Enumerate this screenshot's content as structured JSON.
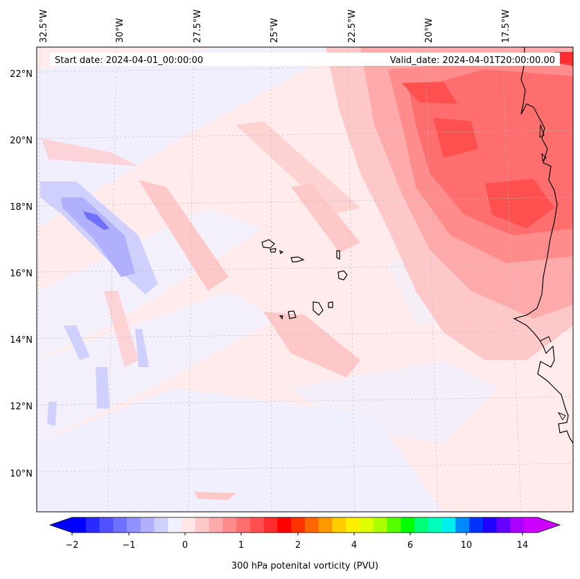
{
  "map": {
    "info_box": {
      "start_date": "Start date: 2024-04-01_00:00:00",
      "valid_date": "Valid_date: 2024-04-01T20:00:00.00"
    },
    "longitude_labels": [
      "32.5°W",
      "30°W",
      "27.5°W",
      "25°W",
      "22.5°W",
      "20°W",
      "17.5°W"
    ],
    "latitude_labels": [
      "22°N",
      "20°N",
      "18°N",
      "16°N",
      "14°N",
      "12°N",
      "10°N"
    ],
    "colors": {
      "background": "#ffebeb",
      "coastline": "#000000",
      "gridline": "#bbbbbb"
    }
  },
  "colorbar": {
    "label": "300 hPa potenital vorticity (PVU)",
    "tick_labels": [
      "−2",
      "−1",
      "0",
      "1",
      "2",
      "4",
      "6",
      "10",
      "14"
    ],
    "colors": [
      "#0000ff",
      "#2a2aff",
      "#5050ff",
      "#7070ff",
      "#9090ff",
      "#b0b0ff",
      "#d0d0ff",
      "#f0f0ff",
      "#ffe6e6",
      "#ffc8c8",
      "#ffaaaa",
      "#ff8c8c",
      "#ff6e6e",
      "#ff5050",
      "#ff2d2d",
      "#ff0000",
      "#ff3300",
      "#ff6600",
      "#ff9900",
      "#ffcc00",
      "#ffee00",
      "#ddff00",
      "#aaff00",
      "#55ff00",
      "#00ff00",
      "#00ff77",
      "#00ffbb",
      "#00eeee",
      "#0088ff",
      "#0033ff",
      "#2200ff",
      "#6600ff",
      "#aa00ff",
      "#cc00ff"
    ],
    "over_color": "#cc00ff",
    "under_color": "#0000ff"
  },
  "chart_data": {
    "type": "contourf_map",
    "variable": "300 hPa potenital vorticity (PVU)",
    "lon_range": [
      -33,
      -15.4
    ],
    "lat_range": [
      8.9,
      22.8
    ],
    "levels": [
      -2,
      -1,
      0,
      1,
      2,
      4,
      6,
      10,
      14
    ],
    "features": [
      {
        "name": "high PV region",
        "approx_lon": -18.5,
        "approx_lat": 19.5,
        "pvu": 2
      },
      {
        "name": "negative PV band",
        "approx_lon": -31,
        "approx_lat": 17.5,
        "pvu": -1
      }
    ]
  }
}
